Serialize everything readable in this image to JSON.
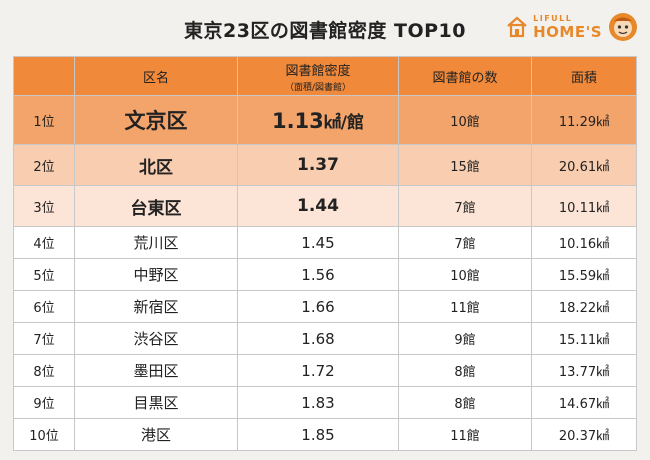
{
  "title": "東京23区の図書館密度 TOP10",
  "logo": {
    "small": "LIFULL",
    "big": "HOME'S",
    "accent": "#e7892a"
  },
  "header": {
    "rank": "",
    "ward": "区名",
    "density": "図書館密度",
    "density_sub": "（面積/図書館）",
    "count": "図書館の数",
    "area": "面積"
  },
  "colors": {
    "header": "#f0893a",
    "rank1": "#f3a46b",
    "rank2": "#f8cdb0",
    "rank3": "#fce4d6"
  },
  "rows": [
    {
      "rank": "1位",
      "ward": "文京区",
      "density": "1.13",
      "density_unit": "㎢/館",
      "count": "10館",
      "area": "11.29㎢"
    },
    {
      "rank": "2位",
      "ward": "北区",
      "density": "1.37",
      "density_unit": "",
      "count": "15館",
      "area": "20.61㎢"
    },
    {
      "rank": "3位",
      "ward": "台東区",
      "density": "1.44",
      "density_unit": "",
      "count": "7館",
      "area": "10.11㎢"
    },
    {
      "rank": "4位",
      "ward": "荒川区",
      "density": "1.45",
      "density_unit": "",
      "count": "7館",
      "area": "10.16㎢"
    },
    {
      "rank": "5位",
      "ward": "中野区",
      "density": "1.56",
      "density_unit": "",
      "count": "10館",
      "area": "15.59㎢"
    },
    {
      "rank": "6位",
      "ward": "新宿区",
      "density": "1.66",
      "density_unit": "",
      "count": "11館",
      "area": "18.22㎢"
    },
    {
      "rank": "7位",
      "ward": "渋谷区",
      "density": "1.68",
      "density_unit": "",
      "count": "9館",
      "area": "15.11㎢"
    },
    {
      "rank": "8位",
      "ward": "墨田区",
      "density": "1.72",
      "density_unit": "",
      "count": "8館",
      "area": "13.77㎢"
    },
    {
      "rank": "9位",
      "ward": "目黒区",
      "density": "1.83",
      "density_unit": "",
      "count": "8館",
      "area": "14.67㎢"
    },
    {
      "rank": "10位",
      "ward": "港区",
      "density": "1.85",
      "density_unit": "",
      "count": "11館",
      "area": "20.37㎢"
    }
  ]
}
